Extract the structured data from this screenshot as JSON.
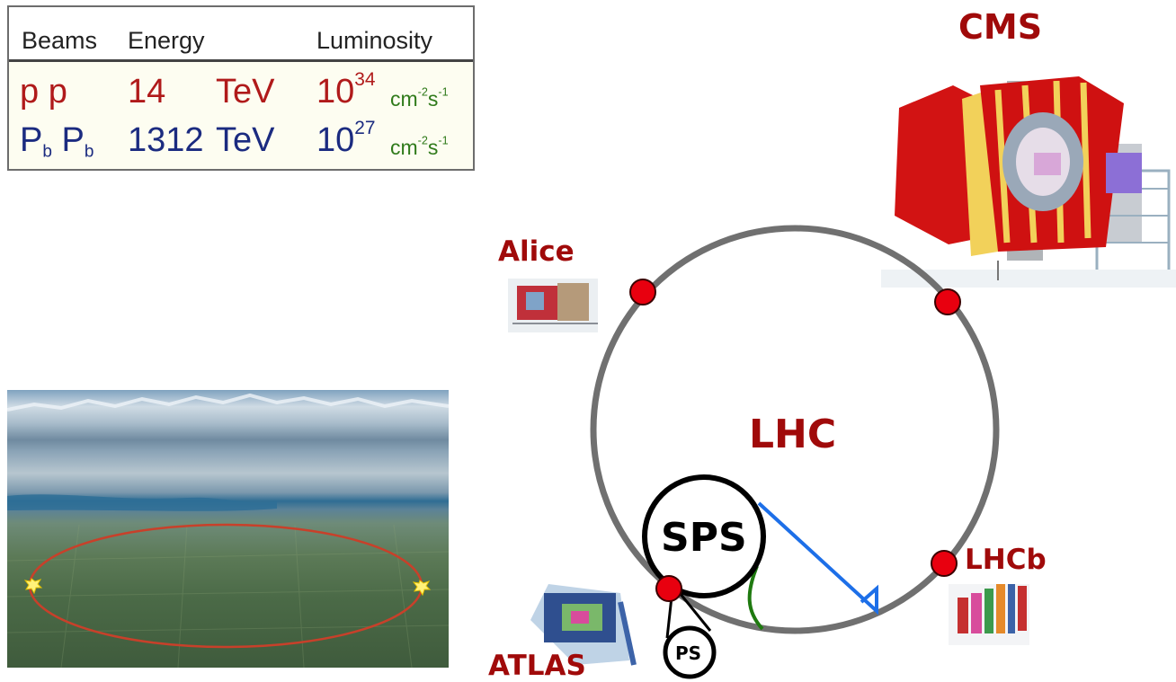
{
  "beams_table": {
    "headers": {
      "beams": "Beams",
      "energy": "Energy",
      "luminosity": "Luminosity"
    },
    "rows": [
      {
        "beam": "p p",
        "energy_value": "14",
        "energy_unit": "TeV",
        "lumi_base": "10",
        "lumi_exp": "34",
        "lumi_unit": "cm",
        "lumi_unit_exp1": "-2",
        "lumi_unit_s": "s",
        "lumi_unit_exp2": "-1",
        "color": "#b01a1a"
      },
      {
        "beam_p1": "P",
        "beam_sub1": "b",
        "beam_p2": "P",
        "beam_sub2": "b",
        "energy_value": "1312",
        "energy_unit": "TeV",
        "lumi_base": "10",
        "lumi_exp": "27",
        "lumi_unit": "cm",
        "lumi_unit_exp1": "-2",
        "lumi_unit_s": "s",
        "lumi_unit_exp2": "-1",
        "color": "#1b2b80"
      }
    ]
  },
  "labels": {
    "cms": "CMS",
    "alice": "Alice",
    "lhc": "LHC",
    "sps": "SPS",
    "ps": "PS",
    "lhcb": "LHCb",
    "atlas": "ATLAS"
  },
  "colors": {
    "label_red": "#a00a0a",
    "ring_gray": "#707070",
    "dot_red": "#e8000f",
    "transfer_blue": "#1d6fe8",
    "transfer_green": "#1f7a10"
  },
  "icons": [
    "cms-detector-image",
    "alice-detector-image",
    "atlas-detector-image",
    "lhcb-detector-image",
    "aerial-geneva-photo"
  ]
}
